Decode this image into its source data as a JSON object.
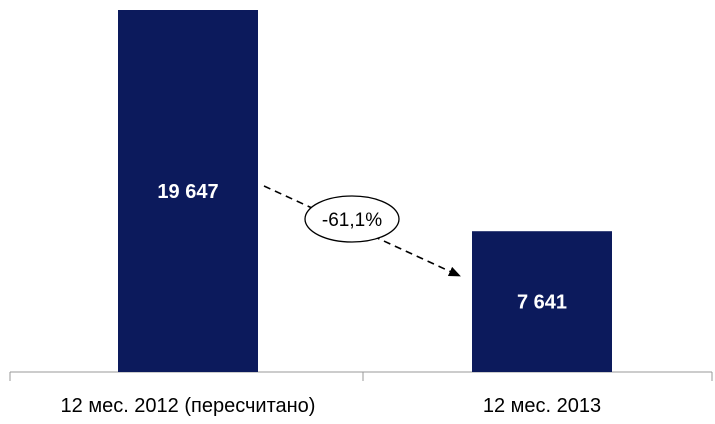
{
  "chart_data": {
    "type": "bar",
    "categories": [
      "12 мес. 2012 (пересчитано)",
      "12 мес. 2013"
    ],
    "values": [
      19647,
      7641
    ],
    "value_labels": [
      "19 647",
      "7 641"
    ],
    "change_label": "-61,1%",
    "bar_color": "#0c1a5c",
    "ylim": [
      0,
      19647
    ],
    "grid": false,
    "legend": "none"
  }
}
